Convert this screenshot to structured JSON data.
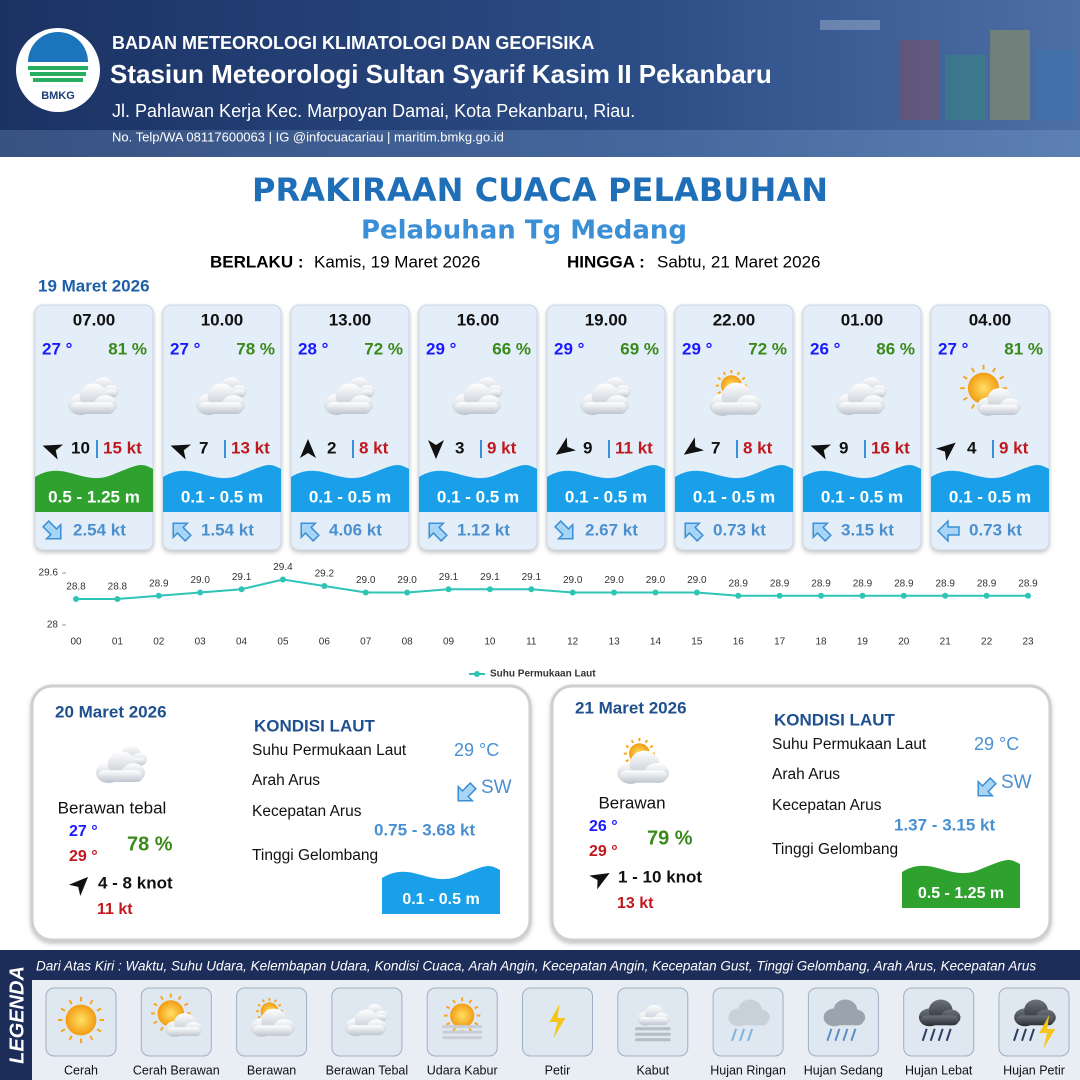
{
  "header": {
    "logo": "BMKG",
    "agency": "BADAN METEOROLOGI KLIMATOLOGI DAN GEOFISIKA",
    "station": "Stasiun Meteorologi Sultan Syarif Kasim II Pekanbaru",
    "address": "Jl. Pahlawan Kerja Kec. Marpoyan Damai, Kota Pekanbaru, Riau.",
    "contact": "No. Telp/WA 08117600063 | IG @infocuacariau | maritim.bmkg.go.id"
  },
  "title": "PRAKIRAAN CUACA PELABUHAN",
  "port": "Pelabuhan Tg Medang",
  "validity": {
    "from_label": "BERLAKU :",
    "from": "Kamis, 19 Maret 2026",
    "to_label": "HINGGA :",
    "to": "Sabtu, 21 Maret 2026"
  },
  "day1": {
    "date": "19 Maret 2026",
    "forecasts": [
      {
        "time": "07.00",
        "temp": "27 °",
        "humidity": "81 %",
        "wind": "10",
        "gust": "15 kt",
        "wave": "0.5 - 1.25 m",
        "current": "2.54 kt"
      },
      {
        "time": "10.00",
        "temp": "27 °",
        "humidity": "78 %",
        "wind": "7",
        "gust": "13 kt",
        "wave": "0.1 - 0.5 m",
        "current": "1.54 kt"
      },
      {
        "time": "13.00",
        "temp": "28 °",
        "humidity": "72 %",
        "wind": "2",
        "gust": "8 kt",
        "wave": "0.1 - 0.5 m",
        "current": "4.06 kt"
      },
      {
        "time": "16.00",
        "temp": "29 °",
        "humidity": "66 %",
        "wind": "3",
        "gust": "9 kt",
        "wave": "0.1 - 0.5 m",
        "current": "1.12 kt"
      },
      {
        "time": "19.00",
        "temp": "29 °",
        "humidity": "69 %",
        "wind": "9",
        "gust": "11 kt",
        "wave": "0.1 - 0.5 m",
        "current": "2.67 kt"
      },
      {
        "time": "22.00",
        "temp": "29 °",
        "humidity": "72 %",
        "wind": "7",
        "gust": "8 kt",
        "wave": "0.1 - 0.5 m",
        "current": "0.73 kt"
      },
      {
        "time": "01.00",
        "temp": "26 °",
        "humidity": "86 %",
        "wind": "9",
        "gust": "16 kt",
        "wave": "0.1 - 0.5 m",
        "current": "3.15 kt"
      },
      {
        "time": "04.00",
        "temp": "27 °",
        "humidity": "81 %",
        "wind": "4",
        "gust": "9 kt",
        "wave": "0.1 - 0.5 m",
        "current": "0.73 kt"
      }
    ]
  },
  "chart_data": {
    "type": "line",
    "categories": [
      "00",
      "01",
      "02",
      "03",
      "04",
      "05",
      "06",
      "07",
      "08",
      "09",
      "10",
      "11",
      "12",
      "13",
      "14",
      "15",
      "16",
      "17",
      "18",
      "19",
      "20",
      "21",
      "22",
      "23"
    ],
    "series": [
      {
        "name": "Suhu Permukaan Laut",
        "color": "#2ec4b6",
        "values": [
          28.8,
          28.8,
          28.9,
          29.0,
          29.1,
          29.4,
          29.2,
          29.0,
          29.0,
          29.1,
          29.1,
          29.1,
          29.0,
          29.0,
          29.0,
          29.0,
          28.9,
          28.9,
          28.9,
          28.9,
          28.9,
          28.9,
          28.9,
          28.9
        ],
        "value_labels": [
          "28.8",
          "28.8",
          "28.9",
          "29.0",
          "29.1",
          "29.4",
          "29.2",
          "29.0",
          "29.0",
          "29.1",
          "29.1",
          "29.1",
          "29.0",
          "29.0",
          "29.0",
          "29.0",
          "28.9",
          "28.9",
          "28.9",
          "28.9",
          "28.9",
          "28.9",
          "28.9",
          "28.9"
        ]
      }
    ],
    "ylim": [
      28,
      29.6
    ],
    "yticks": [
      28,
      29.6
    ]
  },
  "sea_conditions": {
    "heading": "KONDISI LAUT",
    "labels": [
      "Suhu Permukaan Laut",
      "Arah Arus",
      "Kecepatan Arus",
      "Tinggi Gelombang"
    ]
  },
  "days": [
    {
      "date": "20 Maret 2026",
      "condition": "Berawan tebal",
      "temp_min": "27 °",
      "temp_max": "29 °",
      "humidity": "78 %",
      "wind": "4 - 8 knot",
      "gust": "11 kt",
      "sst": "29 °C",
      "current_direction": "SW",
      "current_speed": "0.75 - 3.68 kt",
      "wave": "0.1 - 0.5 m"
    },
    {
      "date": "21 Maret 2026",
      "condition": "Berawan",
      "temp_min": "26 °",
      "temp_max": "29 °",
      "humidity": "79 %",
      "wind": "1 - 10 knot",
      "gust": "13 kt",
      "sst": "29 °C",
      "current_direction": "SW",
      "current_speed": "1.37 - 3.15 kt",
      "wave": "0.5 - 1.25 m"
    }
  ],
  "legend": {
    "title": "LEGENDA",
    "description": "Dari Atas Kiri : Waktu, Suhu Udara, Kelembapan Udara, Kondisi Cuaca, Arah Angin, Kecepatan Angin, Kecepatan Gust, Tinggi Gelombang, Arah Arus, Kecepatan Arus",
    "items": [
      "Cerah",
      "Cerah Berawan",
      "Berawan",
      "Berawan Tebal",
      "Udara Kabur",
      "Petir",
      "Kabut",
      "Hujan Ringan",
      "Hujan Sedang",
      "Hujan Lebat",
      "Hujan Petir"
    ]
  }
}
